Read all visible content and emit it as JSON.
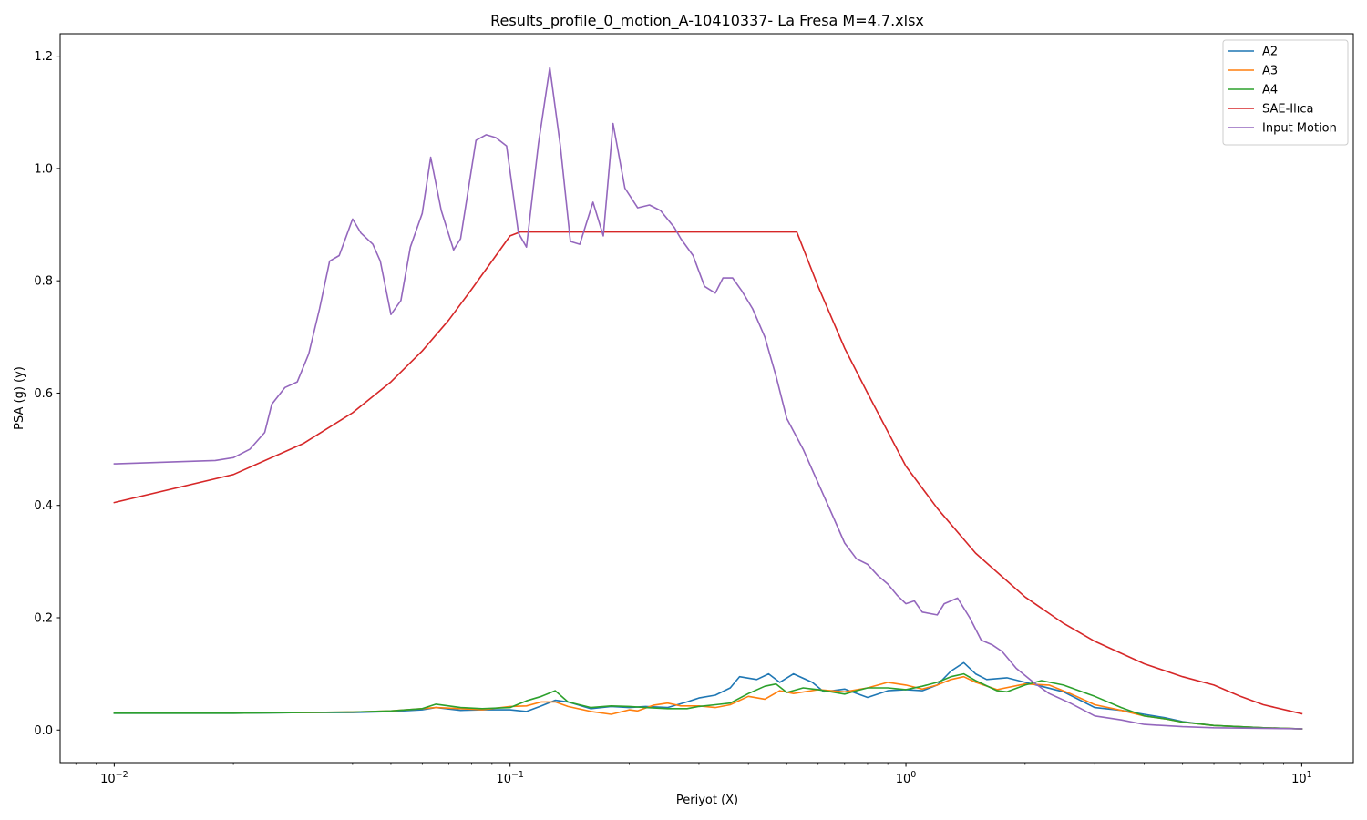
{
  "chart_data": {
    "type": "line",
    "title": "Results_profile_0_motion_A-10410337- La Fresa M=4.7.xlsx",
    "xlabel": "Periyot (X)",
    "ylabel": "PSA (g) (y)",
    "xscale": "log",
    "xlim": [
      0.0073,
      13.5
    ],
    "ylim": [
      -0.058,
      1.24
    ],
    "x_ticks": [
      0.01,
      0.1,
      1,
      10
    ],
    "x_tick_labels": [
      [
        "10",
        "−2"
      ],
      [
        "10",
        "−1"
      ],
      [
        "10",
        "0"
      ],
      [
        "10",
        "1"
      ]
    ],
    "y_ticks": [
      0.0,
      0.2,
      0.4,
      0.6,
      0.8,
      1.0,
      1.2
    ],
    "y_tick_labels": [
      "0.0",
      "0.2",
      "0.4",
      "0.6",
      "0.8",
      "1.0",
      "1.2"
    ],
    "grid": false,
    "legend_position": "top-right",
    "series": [
      {
        "name": "A2",
        "color": "#1f77b4",
        "points": [
          [
            0.01,
            0.03
          ],
          [
            0.02,
            0.03
          ],
          [
            0.03,
            0.031
          ],
          [
            0.04,
            0.031
          ],
          [
            0.05,
            0.033
          ],
          [
            0.06,
            0.036
          ],
          [
            0.065,
            0.04
          ],
          [
            0.075,
            0.035
          ],
          [
            0.085,
            0.036
          ],
          [
            0.1,
            0.036
          ],
          [
            0.11,
            0.033
          ],
          [
            0.12,
            0.043
          ],
          [
            0.13,
            0.053
          ],
          [
            0.14,
            0.05
          ],
          [
            0.16,
            0.038
          ],
          [
            0.18,
            0.042
          ],
          [
            0.2,
            0.04
          ],
          [
            0.22,
            0.042
          ],
          [
            0.25,
            0.04
          ],
          [
            0.28,
            0.05
          ],
          [
            0.3,
            0.057
          ],
          [
            0.33,
            0.062
          ],
          [
            0.36,
            0.075
          ],
          [
            0.38,
            0.095
          ],
          [
            0.42,
            0.09
          ],
          [
            0.45,
            0.1
          ],
          [
            0.48,
            0.085
          ],
          [
            0.52,
            0.1
          ],
          [
            0.58,
            0.085
          ],
          [
            0.62,
            0.068
          ],
          [
            0.7,
            0.073
          ],
          [
            0.8,
            0.058
          ],
          [
            0.9,
            0.07
          ],
          [
            1.0,
            0.072
          ],
          [
            1.1,
            0.07
          ],
          [
            1.2,
            0.08
          ],
          [
            1.3,
            0.105
          ],
          [
            1.4,
            0.12
          ],
          [
            1.5,
            0.1
          ],
          [
            1.6,
            0.09
          ],
          [
            1.8,
            0.093
          ],
          [
            2.0,
            0.085
          ],
          [
            2.2,
            0.078
          ],
          [
            2.5,
            0.068
          ],
          [
            3.0,
            0.04
          ],
          [
            3.5,
            0.035
          ],
          [
            4.0,
            0.028
          ],
          [
            4.5,
            0.022
          ],
          [
            5,
            0.015
          ],
          [
            6,
            0.008
          ],
          [
            8,
            0.004
          ],
          [
            10,
            0.002
          ]
        ]
      },
      {
        "name": "A3",
        "color": "#ff7f0e",
        "points": [
          [
            0.01,
            0.031
          ],
          [
            0.02,
            0.031
          ],
          [
            0.03,
            0.031
          ],
          [
            0.04,
            0.032
          ],
          [
            0.05,
            0.034
          ],
          [
            0.06,
            0.038
          ],
          [
            0.065,
            0.04
          ],
          [
            0.075,
            0.038
          ],
          [
            0.085,
            0.036
          ],
          [
            0.1,
            0.042
          ],
          [
            0.11,
            0.043
          ],
          [
            0.12,
            0.05
          ],
          [
            0.13,
            0.05
          ],
          [
            0.14,
            0.042
          ],
          [
            0.16,
            0.033
          ],
          [
            0.18,
            0.028
          ],
          [
            0.2,
            0.036
          ],
          [
            0.21,
            0.034
          ],
          [
            0.23,
            0.044
          ],
          [
            0.25,
            0.048
          ],
          [
            0.27,
            0.043
          ],
          [
            0.3,
            0.043
          ],
          [
            0.33,
            0.04
          ],
          [
            0.36,
            0.045
          ],
          [
            0.4,
            0.06
          ],
          [
            0.44,
            0.055
          ],
          [
            0.48,
            0.07
          ],
          [
            0.52,
            0.065
          ],
          [
            0.6,
            0.072
          ],
          [
            0.7,
            0.068
          ],
          [
            0.8,
            0.075
          ],
          [
            0.9,
            0.085
          ],
          [
            1.0,
            0.08
          ],
          [
            1.1,
            0.073
          ],
          [
            1.2,
            0.08
          ],
          [
            1.3,
            0.09
          ],
          [
            1.4,
            0.095
          ],
          [
            1.5,
            0.085
          ],
          [
            1.7,
            0.072
          ],
          [
            2.0,
            0.082
          ],
          [
            2.3,
            0.08
          ],
          [
            2.6,
            0.065
          ],
          [
            3.0,
            0.045
          ],
          [
            3.5,
            0.035
          ],
          [
            4.0,
            0.025
          ],
          [
            4.5,
            0.02
          ],
          [
            5,
            0.014
          ],
          [
            6,
            0.008
          ],
          [
            8,
            0.004
          ],
          [
            10,
            0.002
          ]
        ]
      },
      {
        "name": "A4",
        "color": "#2ca02c",
        "points": [
          [
            0.01,
            0.03
          ],
          [
            0.02,
            0.03
          ],
          [
            0.03,
            0.031
          ],
          [
            0.04,
            0.032
          ],
          [
            0.05,
            0.034
          ],
          [
            0.06,
            0.038
          ],
          [
            0.065,
            0.046
          ],
          [
            0.075,
            0.04
          ],
          [
            0.085,
            0.038
          ],
          [
            0.1,
            0.04
          ],
          [
            0.11,
            0.052
          ],
          [
            0.12,
            0.06
          ],
          [
            0.13,
            0.07
          ],
          [
            0.14,
            0.05
          ],
          [
            0.16,
            0.04
          ],
          [
            0.18,
            0.043
          ],
          [
            0.2,
            0.042
          ],
          [
            0.22,
            0.04
          ],
          [
            0.25,
            0.038
          ],
          [
            0.28,
            0.038
          ],
          [
            0.3,
            0.042
          ],
          [
            0.33,
            0.045
          ],
          [
            0.36,
            0.048
          ],
          [
            0.4,
            0.065
          ],
          [
            0.44,
            0.078
          ],
          [
            0.47,
            0.082
          ],
          [
            0.5,
            0.067
          ],
          [
            0.55,
            0.075
          ],
          [
            0.6,
            0.072
          ],
          [
            0.7,
            0.064
          ],
          [
            0.75,
            0.07
          ],
          [
            0.8,
            0.075
          ],
          [
            0.9,
            0.075
          ],
          [
            1.0,
            0.072
          ],
          [
            1.1,
            0.078
          ],
          [
            1.2,
            0.085
          ],
          [
            1.3,
            0.095
          ],
          [
            1.4,
            0.1
          ],
          [
            1.5,
            0.088
          ],
          [
            1.7,
            0.07
          ],
          [
            1.8,
            0.068
          ],
          [
            2.0,
            0.08
          ],
          [
            2.2,
            0.088
          ],
          [
            2.5,
            0.08
          ],
          [
            3.0,
            0.06
          ],
          [
            3.5,
            0.04
          ],
          [
            4.0,
            0.025
          ],
          [
            4.5,
            0.02
          ],
          [
            5,
            0.014
          ],
          [
            6,
            0.008
          ],
          [
            8,
            0.004
          ],
          [
            10,
            0.002
          ]
        ]
      },
      {
        "name": "SAE-Ilıca",
        "color": "#d62728",
        "points": [
          [
            0.01,
            0.405
          ],
          [
            0.02,
            0.455
          ],
          [
            0.03,
            0.51
          ],
          [
            0.04,
            0.565
          ],
          [
            0.05,
            0.62
          ],
          [
            0.06,
            0.675
          ],
          [
            0.07,
            0.73
          ],
          [
            0.08,
            0.785
          ],
          [
            0.09,
            0.835
          ],
          [
            0.1,
            0.88
          ],
          [
            0.106,
            0.887
          ],
          [
            0.53,
            0.887
          ],
          [
            0.6,
            0.79
          ],
          [
            0.7,
            0.68
          ],
          [
            0.8,
            0.6
          ],
          [
            1.0,
            0.47
          ],
          [
            1.2,
            0.395
          ],
          [
            1.5,
            0.315
          ],
          [
            2.0,
            0.237
          ],
          [
            2.5,
            0.19
          ],
          [
            3.0,
            0.158
          ],
          [
            4.0,
            0.118
          ],
          [
            5.0,
            0.095
          ],
          [
            6.0,
            0.08
          ],
          [
            7.0,
            0.06
          ],
          [
            8.0,
            0.045
          ],
          [
            10.0,
            0.029
          ]
        ]
      },
      {
        "name": "Input Motion",
        "color": "#9467bd",
        "points": [
          [
            0.01,
            0.474
          ],
          [
            0.015,
            0.478
          ],
          [
            0.018,
            0.48
          ],
          [
            0.02,
            0.485
          ],
          [
            0.022,
            0.5
          ],
          [
            0.024,
            0.53
          ],
          [
            0.025,
            0.58
          ],
          [
            0.027,
            0.61
          ],
          [
            0.029,
            0.62
          ],
          [
            0.031,
            0.67
          ],
          [
            0.033,
            0.75
          ],
          [
            0.035,
            0.835
          ],
          [
            0.037,
            0.845
          ],
          [
            0.04,
            0.91
          ],
          [
            0.042,
            0.885
          ],
          [
            0.045,
            0.865
          ],
          [
            0.047,
            0.835
          ],
          [
            0.05,
            0.74
          ],
          [
            0.053,
            0.765
          ],
          [
            0.056,
            0.86
          ],
          [
            0.06,
            0.92
          ],
          [
            0.063,
            1.02
          ],
          [
            0.067,
            0.925
          ],
          [
            0.072,
            0.855
          ],
          [
            0.075,
            0.875
          ],
          [
            0.082,
            1.05
          ],
          [
            0.087,
            1.06
          ],
          [
            0.092,
            1.055
          ],
          [
            0.098,
            1.04
          ],
          [
            0.105,
            0.885
          ],
          [
            0.11,
            0.86
          ],
          [
            0.118,
            1.045
          ],
          [
            0.126,
            1.18
          ],
          [
            0.134,
            1.04
          ],
          [
            0.142,
            0.87
          ],
          [
            0.15,
            0.865
          ],
          [
            0.162,
            0.94
          ],
          [
            0.172,
            0.88
          ],
          [
            0.182,
            1.08
          ],
          [
            0.195,
            0.965
          ],
          [
            0.21,
            0.93
          ],
          [
            0.225,
            0.935
          ],
          [
            0.24,
            0.925
          ],
          [
            0.26,
            0.895
          ],
          [
            0.27,
            0.875
          ],
          [
            0.29,
            0.845
          ],
          [
            0.31,
            0.79
          ],
          [
            0.33,
            0.778
          ],
          [
            0.345,
            0.805
          ],
          [
            0.365,
            0.805
          ],
          [
            0.385,
            0.782
          ],
          [
            0.41,
            0.75
          ],
          [
            0.44,
            0.7
          ],
          [
            0.47,
            0.63
          ],
          [
            0.5,
            0.555
          ],
          [
            0.55,
            0.5
          ],
          [
            0.6,
            0.44
          ],
          [
            0.65,
            0.385
          ],
          [
            0.7,
            0.333
          ],
          [
            0.75,
            0.305
          ],
          [
            0.8,
            0.295
          ],
          [
            0.85,
            0.275
          ],
          [
            0.9,
            0.26
          ],
          [
            0.95,
            0.24
          ],
          [
            1.0,
            0.225
          ],
          [
            1.05,
            0.23
          ],
          [
            1.1,
            0.21
          ],
          [
            1.2,
            0.205
          ],
          [
            1.25,
            0.225
          ],
          [
            1.35,
            0.235
          ],
          [
            1.45,
            0.2
          ],
          [
            1.55,
            0.16
          ],
          [
            1.65,
            0.152
          ],
          [
            1.75,
            0.14
          ],
          [
            1.9,
            0.11
          ],
          [
            2.1,
            0.085
          ],
          [
            2.3,
            0.065
          ],
          [
            2.6,
            0.048
          ],
          [
            3.0,
            0.025
          ],
          [
            3.5,
            0.018
          ],
          [
            4.0,
            0.01
          ],
          [
            5.0,
            0.006
          ],
          [
            6.0,
            0.004
          ],
          [
            8.0,
            0.003
          ],
          [
            10.0,
            0.002
          ]
        ]
      }
    ]
  }
}
